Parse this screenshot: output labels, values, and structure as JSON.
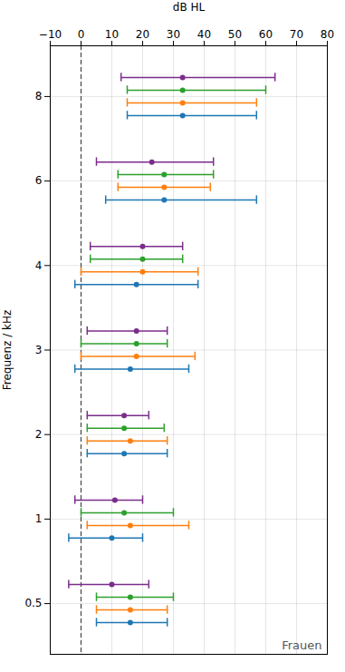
{
  "chart_data": {
    "type": "interval",
    "xlabel": "dB HL",
    "ylabel": "Frequenz / kHz",
    "annotation": "Frauen",
    "categories": [
      "8",
      "6",
      "4",
      "3",
      "2",
      "1",
      "0.5"
    ],
    "xlim": [
      -10,
      80
    ],
    "xticks": [
      -10,
      0,
      10,
      20,
      30,
      40,
      50,
      60,
      70,
      80
    ],
    "grid": true,
    "vlines": [
      {
        "x": 0,
        "line_style": "dashed"
      }
    ],
    "series": [
      {
        "color": "#7B2D8B",
        "p10": [
          13,
          5,
          3,
          2,
          2,
          -2,
          -4
        ],
        "values": [
          33,
          23,
          20,
          18,
          14,
          11,
          10
        ],
        "p90": [
          63,
          43,
          33,
          28,
          22,
          20,
          22
        ]
      },
      {
        "color": "#2CA02C",
        "p10": [
          15,
          12,
          3,
          0,
          2,
          0,
          5
        ],
        "values": [
          33,
          27,
          20,
          18,
          14,
          14,
          16
        ],
        "p90": [
          60,
          43,
          33,
          28,
          27,
          30,
          30
        ]
      },
      {
        "color": "#FF7F0E",
        "p10": [
          15,
          12,
          0,
          0,
          2,
          2,
          5
        ],
        "values": [
          33,
          27,
          20,
          18,
          16,
          16,
          16
        ],
        "p90": [
          57,
          42,
          38,
          37,
          28,
          35,
          28
        ]
      },
      {
        "color": "#1F77B4",
        "p10": [
          15,
          8,
          -2,
          -2,
          2,
          -4,
          5
        ],
        "values": [
          33,
          27,
          18,
          16,
          14,
          10,
          16
        ],
        "p90": [
          57,
          57,
          38,
          35,
          28,
          20,
          28
        ]
      }
    ]
  }
}
